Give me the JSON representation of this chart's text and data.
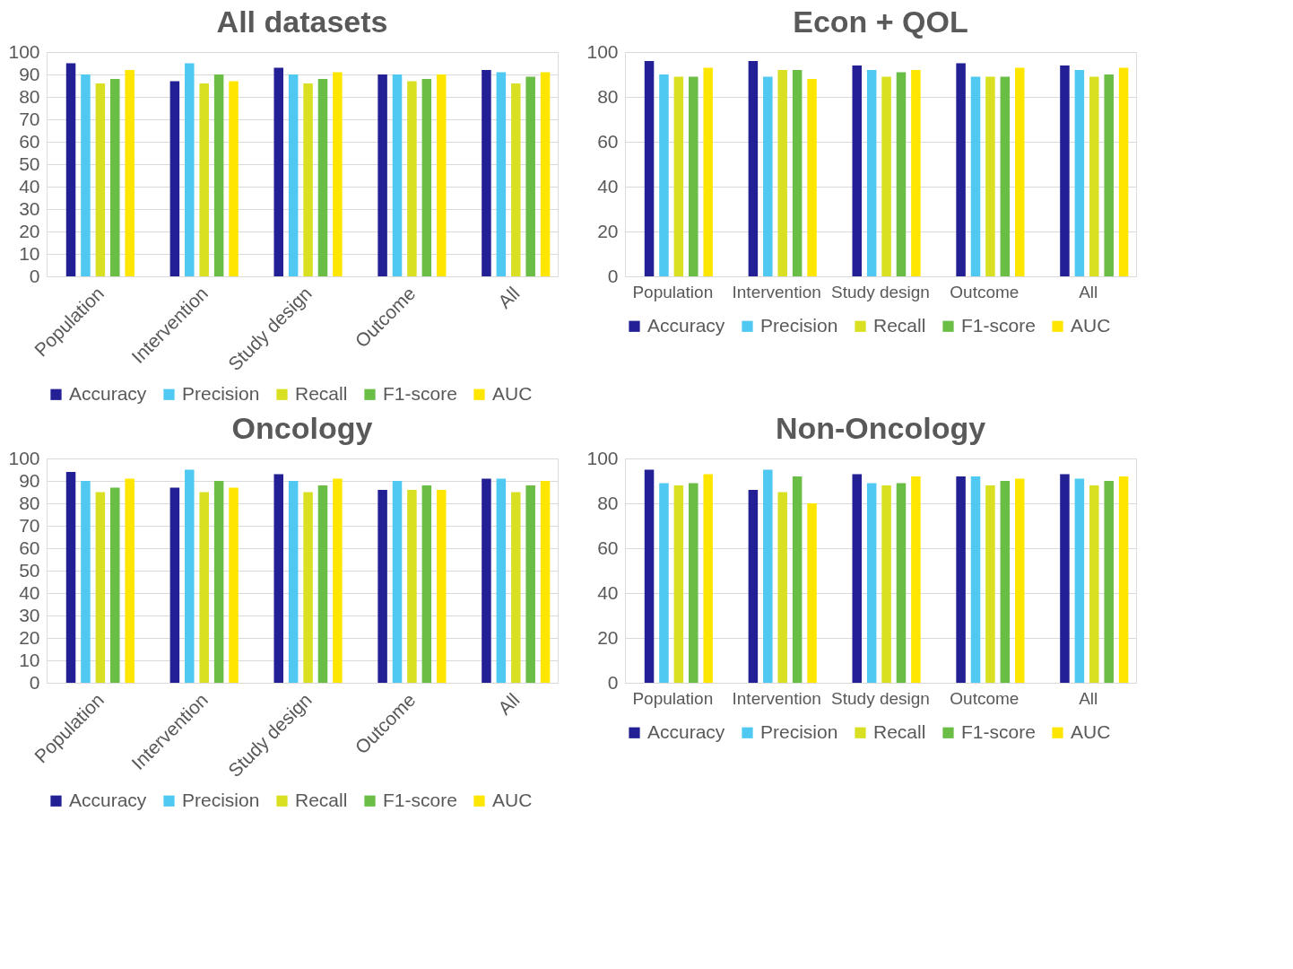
{
  "chart_data": [
    {
      "type": "bar",
      "title": "All datasets",
      "categories": [
        "Population",
        "Intervention",
        "Study design",
        "Outcome",
        "All"
      ],
      "ylim": [
        0,
        100
      ],
      "yticks": [
        0,
        10,
        20,
        30,
        40,
        50,
        60,
        70,
        80,
        90,
        100
      ],
      "grid": "y",
      "legend": "bottom",
      "series": [
        {
          "name": "Accuracy",
          "color": "#231f94",
          "values": [
            95,
            87,
            93,
            90,
            92
          ]
        },
        {
          "name": "Precision",
          "color": "#4fc9f2",
          "values": [
            90,
            95,
            90,
            90,
            91
          ]
        },
        {
          "name": "Recall",
          "color": "#d9e021",
          "values": [
            86,
            86,
            86,
            87,
            86
          ]
        },
        {
          "name": "F1-score",
          "color": "#6abd45",
          "values": [
            88,
            90,
            88,
            88,
            89
          ]
        },
        {
          "name": "AUC",
          "color": "#ffe600",
          "values": [
            92,
            87,
            91,
            90,
            91
          ]
        }
      ]
    },
    {
      "type": "bar",
      "title": "Econ + QOL",
      "categories": [
        "Population",
        "Intervention",
        "Study design",
        "Outcome",
        "All"
      ],
      "ylim": [
        0,
        100
      ],
      "yticks": [
        0,
        20,
        40,
        60,
        80,
        100
      ],
      "grid": "y",
      "legend": "bottom",
      "series": [
        {
          "name": "Accuracy",
          "color": "#231f94",
          "values": [
            96,
            96,
            94,
            95,
            94
          ]
        },
        {
          "name": "Precision",
          "color": "#4fc9f2",
          "values": [
            90,
            89,
            92,
            89,
            92
          ]
        },
        {
          "name": "Recall",
          "color": "#d9e021",
          "values": [
            89,
            92,
            89,
            89,
            89
          ]
        },
        {
          "name": "F1-score",
          "color": "#6abd45",
          "values": [
            89,
            92,
            91,
            89,
            90
          ]
        },
        {
          "name": "AUC",
          "color": "#ffe600",
          "values": [
            93,
            88,
            92,
            93,
            93
          ]
        }
      ]
    },
    {
      "type": "bar",
      "title": "Oncology",
      "categories": [
        "Population",
        "Intervention",
        "Study design",
        "Outcome",
        "All"
      ],
      "ylim": [
        0,
        100
      ],
      "yticks": [
        0,
        10,
        20,
        30,
        40,
        50,
        60,
        70,
        80,
        90,
        100
      ],
      "grid": "y",
      "legend": "bottom",
      "series": [
        {
          "name": "Accuracy",
          "color": "#231f94",
          "values": [
            94,
            87,
            93,
            86,
            91
          ]
        },
        {
          "name": "Precision",
          "color": "#4fc9f2",
          "values": [
            90,
            95,
            90,
            90,
            91
          ]
        },
        {
          "name": "Recall",
          "color": "#d9e021",
          "values": [
            85,
            85,
            85,
            86,
            85
          ]
        },
        {
          "name": "F1-score",
          "color": "#6abd45",
          "values": [
            87,
            90,
            88,
            88,
            88
          ]
        },
        {
          "name": "AUC",
          "color": "#ffe600",
          "values": [
            91,
            87,
            91,
            86,
            90
          ]
        }
      ]
    },
    {
      "type": "bar",
      "title": "Non-Oncology",
      "categories": [
        "Population",
        "Intervention",
        "Study design",
        "Outcome",
        "All"
      ],
      "ylim": [
        0,
        100
      ],
      "yticks": [
        0,
        20,
        40,
        60,
        80,
        100
      ],
      "grid": "y",
      "legend": "bottom",
      "series": [
        {
          "name": "Accuracy",
          "color": "#231f94",
          "values": [
            95,
            86,
            93,
            92,
            93
          ]
        },
        {
          "name": "Precision",
          "color": "#4fc9f2",
          "values": [
            89,
            95,
            89,
            92,
            91
          ]
        },
        {
          "name": "Recall",
          "color": "#d9e021",
          "values": [
            88,
            85,
            88,
            88,
            88
          ]
        },
        {
          "name": "F1-score",
          "color": "#6abd45",
          "values": [
            89,
            92,
            89,
            90,
            90
          ]
        },
        {
          "name": "AUC",
          "color": "#ffe600",
          "values": [
            93,
            80,
            92,
            91,
            92
          ]
        }
      ]
    }
  ]
}
